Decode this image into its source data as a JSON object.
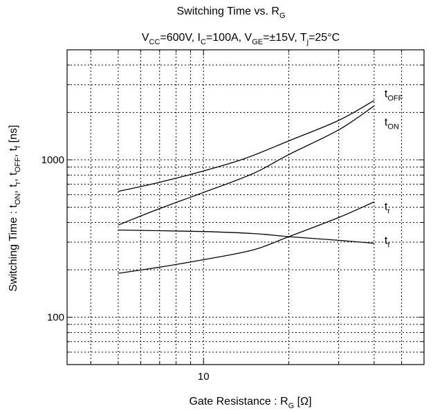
{
  "chart_data": {
    "type": "line",
    "title": {
      "main": "Switching Time vs. R",
      "main_sub": "G"
    },
    "conditions": [
      {
        "t": "V"
      },
      {
        "t": "CC",
        "sub": true
      },
      {
        "t": "=600V, I"
      },
      {
        "t": "C",
        "sub": true
      },
      {
        "t": "=100A, V"
      },
      {
        "t": "GE",
        "sub": true
      },
      {
        "t": "=±15V, T"
      },
      {
        "t": "j",
        "sub": true
      },
      {
        "t": "=25°C"
      }
    ],
    "xlabel": {
      "main": "Gate Resistance : R",
      "sub": "G",
      "unit": " [Ω]"
    },
    "ylabel": [
      {
        "t": "Switching Time : t"
      },
      {
        "t": "ON",
        "sub": true
      },
      {
        "t": ", t"
      },
      {
        "t": "r",
        "sub": true
      },
      {
        "t": ", t"
      },
      {
        "t": "OFF",
        "sub": true
      },
      {
        "t": ", t"
      },
      {
        "t": "f",
        "sub": true
      },
      {
        "t": " [ns]"
      }
    ],
    "x_scale": "log",
    "y_scale": "log",
    "xlim": [
      3.3,
      60
    ],
    "ylim": [
      50,
      5000
    ],
    "x_ticks": [
      {
        "value": 10,
        "label": "10"
      }
    ],
    "y_ticks": [
      {
        "value": 100,
        "label": "100"
      },
      {
        "value": 1000,
        "label": "1000"
      }
    ],
    "grid": true,
    "series": [
      {
        "name": "t",
        "sub": "OFF",
        "label_x": 40,
        "label_y": 2500,
        "points": [
          [
            5,
            630
          ],
          [
            7,
            720
          ],
          [
            10,
            850
          ],
          [
            14,
            1020
          ],
          [
            20,
            1320
          ],
          [
            30,
            1780
          ],
          [
            40,
            2380
          ]
        ]
      },
      {
        "name": "t",
        "sub": "ON",
        "label_x": 40,
        "label_y": 1650,
        "points": [
          [
            5,
            385
          ],
          [
            7,
            490
          ],
          [
            10,
            620
          ],
          [
            15,
            820
          ],
          [
            20,
            1080
          ],
          [
            30,
            1550
          ],
          [
            40,
            2200
          ]
        ]
      },
      {
        "name": "t",
        "sub": "r",
        "label_x": 40,
        "label_y": 480,
        "points": [
          [
            5,
            190
          ],
          [
            7,
            208
          ],
          [
            10,
            232
          ],
          [
            15,
            268
          ],
          [
            20,
            325
          ],
          [
            30,
            430
          ],
          [
            40,
            540
          ]
        ]
      },
      {
        "name": "t",
        "sub": "f",
        "label_x": 40,
        "label_y": 292,
        "points": [
          [
            5,
            358
          ],
          [
            10,
            350
          ],
          [
            15,
            340
          ],
          [
            20,
            325
          ],
          [
            30,
            308
          ],
          [
            40,
            295
          ]
        ]
      }
    ]
  }
}
